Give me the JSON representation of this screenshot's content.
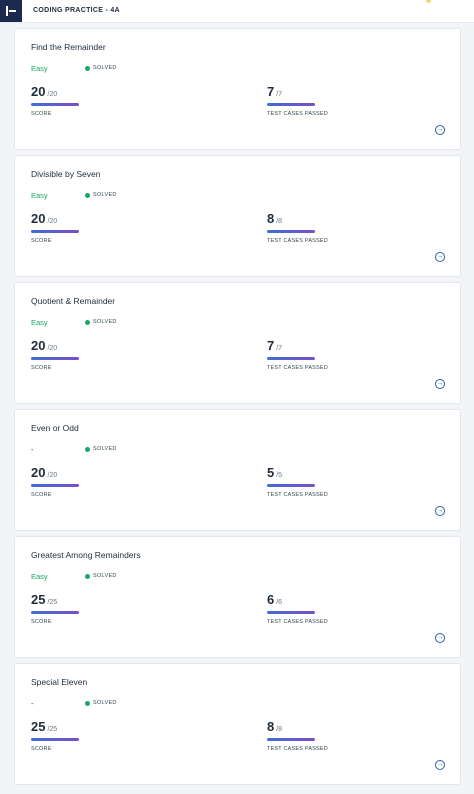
{
  "header": {
    "breadcrumb": "CODING PRACTICE - 4A"
  },
  "status_label": "SOLVED",
  "score_label": "SCORE",
  "cases_label": "TEST CASES PASSED",
  "colors": {
    "easy": "#18a66a",
    "solved_dot": "#18a66a",
    "brand": "#1b2a4e"
  },
  "problems": [
    {
      "title": "Find the Remainder",
      "difficulty": "Easy",
      "score": "20",
      "score_total": "/20",
      "cases": "7",
      "cases_total": "/7"
    },
    {
      "title": "Divisible by Seven",
      "difficulty": "Easy",
      "score": "20",
      "score_total": "/20",
      "cases": "8",
      "cases_total": "/8"
    },
    {
      "title": "Quotient & Remainder",
      "difficulty": "Easy",
      "score": "20",
      "score_total": "/20",
      "cases": "7",
      "cases_total": "/7"
    },
    {
      "title": "Even or Odd",
      "difficulty": "-",
      "score": "20",
      "score_total": "/20",
      "cases": "5",
      "cases_total": "/5"
    },
    {
      "title": "Greatest Among Remainders",
      "difficulty": "Easy",
      "score": "25",
      "score_total": "/25",
      "cases": "6",
      "cases_total": "/6"
    },
    {
      "title": "Special Eleven",
      "difficulty": "-",
      "score": "25",
      "score_total": "/25",
      "cases": "8",
      "cases_total": "/8"
    }
  ]
}
